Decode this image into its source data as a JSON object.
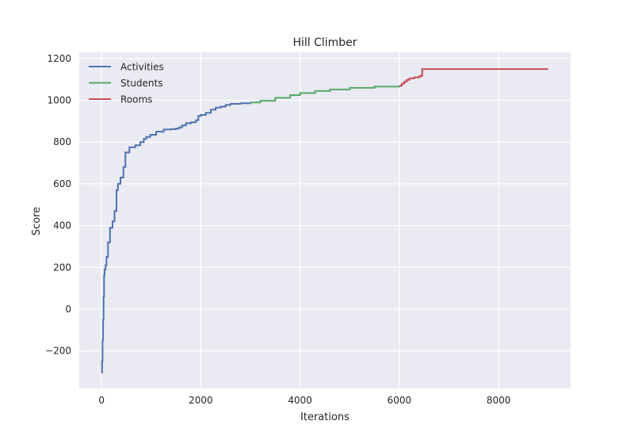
{
  "chart_data": {
    "type": "line",
    "title": "Hill Climber",
    "xlabel": "Iterations",
    "ylabel": "Score",
    "xlim": [
      -450,
      9450
    ],
    "ylim": [
      -380,
      1230
    ],
    "xticks": [
      0,
      2000,
      4000,
      6000,
      8000
    ],
    "yticks": [
      -200,
      0,
      200,
      400,
      600,
      800,
      1000,
      1200
    ],
    "xtick_labels": [
      "0",
      "2000",
      "4000",
      "6000",
      "8000"
    ],
    "ytick_labels": [
      "−200",
      "0",
      "200",
      "400",
      "600",
      "800",
      "1000",
      "1200"
    ],
    "grid": true,
    "legend_position": "upper-left",
    "background_color": "#EAEAF2",
    "series": [
      {
        "name": "Activities",
        "color": "#4C72B0",
        "x": [
          0,
          10,
          20,
          30,
          40,
          50,
          60,
          80,
          100,
          130,
          170,
          220,
          260,
          300,
          330,
          380,
          440,
          480,
          560,
          680,
          780,
          850,
          900,
          980,
          1100,
          1250,
          1400,
          1500,
          1560,
          1620,
          1700,
          1800,
          1900,
          1950,
          2000,
          2100,
          2200,
          2300,
          2400,
          2500,
          2600,
          2800,
          3000
        ],
        "y": [
          -305,
          -250,
          -150,
          -50,
          60,
          160,
          190,
          210,
          250,
          320,
          390,
          420,
          470,
          570,
          600,
          630,
          680,
          750,
          775,
          785,
          800,
          815,
          825,
          835,
          850,
          860,
          862,
          865,
          870,
          880,
          890,
          895,
          905,
          925,
          930,
          940,
          955,
          965,
          970,
          978,
          983,
          986,
          990
        ]
      },
      {
        "name": "Students",
        "color": "#55A868",
        "x": [
          3000,
          3200,
          3500,
          3800,
          4000,
          4300,
          4600,
          5000,
          5500,
          6000
        ],
        "y": [
          990,
          998,
          1012,
          1025,
          1035,
          1045,
          1052,
          1060,
          1066,
          1070
        ]
      },
      {
        "name": "Rooms",
        "color": "#C44E52",
        "x": [
          6000,
          6050,
          6100,
          6150,
          6200,
          6300,
          6400,
          6440,
          6460,
          6500,
          7000,
          8000,
          9000
        ],
        "y": [
          1070,
          1080,
          1090,
          1098,
          1105,
          1110,
          1115,
          1118,
          1150,
          1150,
          1150,
          1150,
          1150
        ]
      }
    ]
  }
}
